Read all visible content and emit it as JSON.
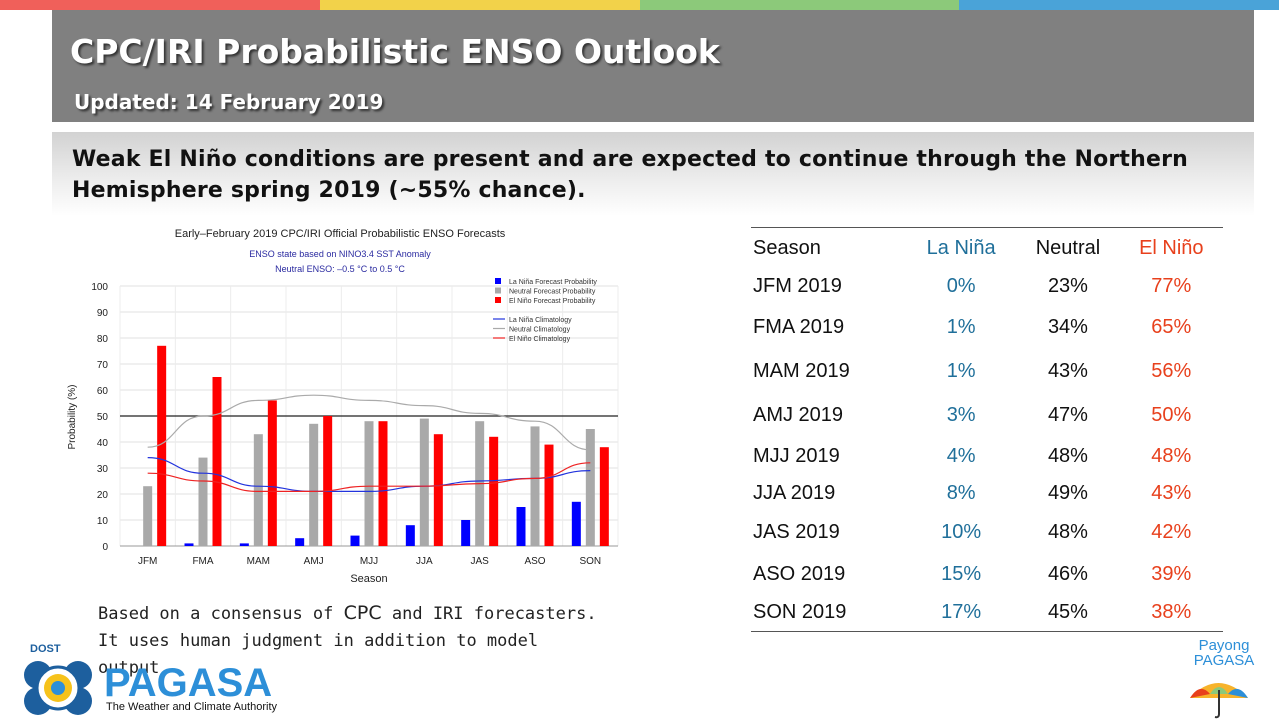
{
  "colors": {
    "topbar": [
      "#f0605a",
      "#f2d24a",
      "#8cc97a",
      "#4aa3d8"
    ],
    "header_bg": "#808080",
    "la_nina": "#1f6f9a",
    "neutral": "#111111",
    "el_nino": "#e8401c",
    "bar_nina": "#0000ff",
    "bar_neutral": "#a9a9a9",
    "bar_nino": "#ff0000"
  },
  "header": {
    "title": "CPC/IRI Probabilistic ENSO Outlook",
    "updated": "Updated: 14 February 2019"
  },
  "headline": "Weak El Niño conditions are present and are expected to continue through the Northern Hemisphere spring 2019 (~55% chance).",
  "note": {
    "prefix": "Based on a consensus of ",
    "cpc": "CPC",
    "suffix": " and IRI forecasters. It uses human judgment in addition to model output."
  },
  "table": {
    "headers": [
      "Season",
      "La Niña",
      "Neutral",
      "El Niño"
    ],
    "rows": [
      [
        "JFM 2019",
        "0%",
        "23%",
        "77%"
      ],
      [
        "FMA 2019",
        "1%",
        "34%",
        "65%"
      ],
      [
        "MAM 2019",
        "1%",
        "43%",
        "56%"
      ],
      [
        "AMJ 2019",
        "3%",
        "47%",
        "50%"
      ],
      [
        "MJJ 2019",
        "4%",
        "48%",
        "48%"
      ],
      [
        "JJA 2019",
        "8%",
        "49%",
        "43%"
      ],
      [
        "JAS 2019",
        "10%",
        "48%",
        "42%"
      ],
      [
        "ASO 2019",
        "15%",
        "46%",
        "39%"
      ],
      [
        "SON 2019",
        "17%",
        "45%",
        "38%"
      ]
    ]
  },
  "logos": {
    "left_top": "DOST",
    "left_name": "PAGASA",
    "left_tagline": "The Weather and Climate Authority",
    "right_line1": "Payong",
    "right_line2": "PAGASA"
  },
  "chart_data": {
    "type": "bar",
    "title": "Early–February 2019 CPC/IRI Official Probabilistic ENSO Forecasts",
    "subtitle1": "ENSO state based on NINO3.4 SST Anomaly",
    "subtitle2": "Neutral ENSO: –0.5 °C to 0.5 °C",
    "xlabel": "Season",
    "ylabel": "Probability (%)",
    "ylim": [
      0,
      100
    ],
    "yticks": [
      0,
      10,
      20,
      30,
      40,
      50,
      60,
      70,
      80,
      90,
      100
    ],
    "categories": [
      "JFM",
      "FMA",
      "MAM",
      "AMJ",
      "MJJ",
      "JJA",
      "JAS",
      "ASO",
      "SON"
    ],
    "legend_placement": "top-right",
    "reference_line": 50,
    "series": [
      {
        "name": "La Niña Forecast Probability",
        "values": [
          0,
          1,
          1,
          3,
          4,
          8,
          10,
          15,
          17
        ]
      },
      {
        "name": "Neutral Forecast Probability",
        "values": [
          23,
          34,
          43,
          47,
          48,
          49,
          48,
          46,
          45
        ]
      },
      {
        "name": "El Niño Forecast Probability",
        "values": [
          77,
          65,
          56,
          50,
          48,
          43,
          42,
          39,
          38
        ]
      }
    ],
    "climatology": [
      {
        "name": "La Niña Climatology",
        "values": [
          34,
          28,
          23,
          21,
          21,
          23,
          25,
          26,
          29
        ]
      },
      {
        "name": "Neutral Climatology",
        "values": [
          38,
          50,
          56,
          58,
          56,
          54,
          51,
          48,
          37
        ]
      },
      {
        "name": "El Niño Climatology",
        "values": [
          28,
          25,
          21,
          21,
          23,
          23,
          24,
          26,
          32
        ]
      }
    ]
  }
}
